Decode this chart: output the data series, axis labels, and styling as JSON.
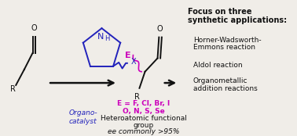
{
  "bg_color": "#f0ede8",
  "blue": "#2222bb",
  "magenta": "#cc00bb",
  "black": "#111111",
  "white": "#ffffff",
  "organocatalyst_text": "Organo-\ncatalyst",
  "focus_title_line1": "Focus on three",
  "focus_title_line2": "synthetic applications:",
  "app1_line1": "Horner-Wadsworth-",
  "app1_line2": "Emmons reaction",
  "app2": "Aldol reaction",
  "app3_line1": "Organometallic",
  "app3_line2": "addition reactions",
  "hetero_line1": "E = F, Cl, Br, I",
  "hetero_line2": "O, N, S, Se",
  "hetero_line3": "Heteroatomic functional",
  "hetero_line4": "group",
  "hetero_line5": "ee commonly >95%"
}
